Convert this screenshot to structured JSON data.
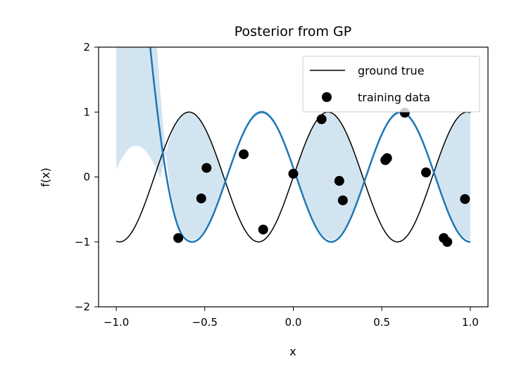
{
  "chart_data": {
    "type": "line",
    "title": "Posterior from GP",
    "xlabel": "x",
    "ylabel": "f(x)",
    "xlim": [
      -1.1,
      1.1
    ],
    "ylim": [
      -2,
      2
    ],
    "xticks": [
      -1.0,
      -0.5,
      0.0,
      0.5,
      1.0
    ],
    "xtick_labels": [
      "−1.0",
      "−0.5",
      "0.0",
      "0.5",
      "1.0"
    ],
    "yticks": [
      -2,
      -1,
      0,
      1,
      2
    ],
    "ytick_labels": [
      "−2",
      "−1",
      "0",
      "1",
      "2"
    ],
    "grid": false,
    "legend_position": "top-right",
    "series": [
      {
        "name": "ground true",
        "kind": "line",
        "color": "#000000",
        "function": "sin(8x)",
        "x_range": [
          -1,
          1
        ]
      },
      {
        "name": "",
        "kind": "line",
        "color": "#1f77b4",
        "description_of_shape": "posterior mean"
      },
      {
        "name": "",
        "kind": "band",
        "color": "#aecde6"
      },
      {
        "name": "training data",
        "kind": "scatter",
        "color": "#000000",
        "points": [
          {
            "x": -0.65,
            "y": -0.94
          },
          {
            "x": -0.52,
            "y": -0.33
          },
          {
            "x": -0.49,
            "y": 0.14
          },
          {
            "x": -0.28,
            "y": 0.35
          },
          {
            "x": -0.17,
            "y": -0.81
          },
          {
            "x": 0.0,
            "y": 0.05
          },
          {
            "x": 0.16,
            "y": 0.89
          },
          {
            "x": 0.26,
            "y": -0.06
          },
          {
            "x": 0.28,
            "y": -0.36
          },
          {
            "x": 0.52,
            "y": 0.26
          },
          {
            "x": 0.53,
            "y": 0.29
          },
          {
            "x": 0.63,
            "y": 0.99
          },
          {
            "x": 0.75,
            "y": 0.07
          },
          {
            "x": 0.85,
            "y": -0.94
          },
          {
            "x": 0.87,
            "y": -1.0
          },
          {
            "x": 0.97,
            "y": -0.34
          }
        ]
      }
    ]
  }
}
